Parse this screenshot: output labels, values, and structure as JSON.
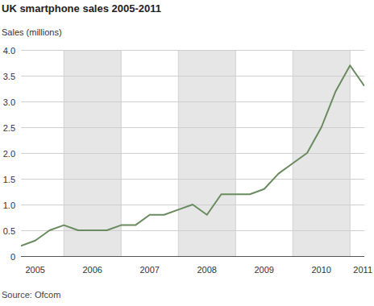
{
  "chart_data": {
    "type": "line",
    "title": "UK smartphone sales 2005-2011",
    "y_label": "Sales (millions)",
    "source": "Source: Ofcom",
    "x": [
      2005.25,
      2005.5,
      2005.75,
      2006,
      2006.25,
      2006.5,
      2006.75,
      2007,
      2007.25,
      2007.5,
      2007.75,
      2008,
      2008.25,
      2008.5,
      2008.75,
      2009,
      2009.25,
      2009.5,
      2009.75,
      2010,
      2010.25,
      2010.5,
      2010.75,
      2011,
      2011.25
    ],
    "values": [
      0.2,
      0.3,
      0.5,
      0.6,
      0.5,
      0.5,
      0.5,
      0.6,
      0.6,
      0.8,
      0.8,
      0.9,
      1.0,
      0.8,
      1.2,
      1.2,
      1.2,
      1.3,
      1.6,
      1.8,
      2.0,
      2.5,
      3.2,
      3.7,
      3.3
    ],
    "color": "#6a8a5f",
    "xlim": [
      2005.25,
      2011.25
    ],
    "xticks": [
      {
        "value": 2005.5,
        "label": "2005"
      },
      {
        "value": 2006.5,
        "label": "2006"
      },
      {
        "value": 2007.5,
        "label": "2007"
      },
      {
        "value": 2008.5,
        "label": "2008"
      },
      {
        "value": 2009.5,
        "label": "2009"
      },
      {
        "value": 2010.5,
        "label": "2010"
      },
      {
        "value": 2011.25,
        "label": "2011"
      }
    ],
    "ylim": [
      0,
      4
    ],
    "yticks": [
      0,
      0.5,
      {
        "value": 1,
        "label": "1.0"
      },
      1.5,
      {
        "value": 2,
        "label": "2.0"
      },
      2.5,
      {
        "value": 3,
        "label": "3.0"
      },
      3.5,
      {
        "value": 4,
        "label": "4.0"
      }
    ],
    "grid": true
  }
}
